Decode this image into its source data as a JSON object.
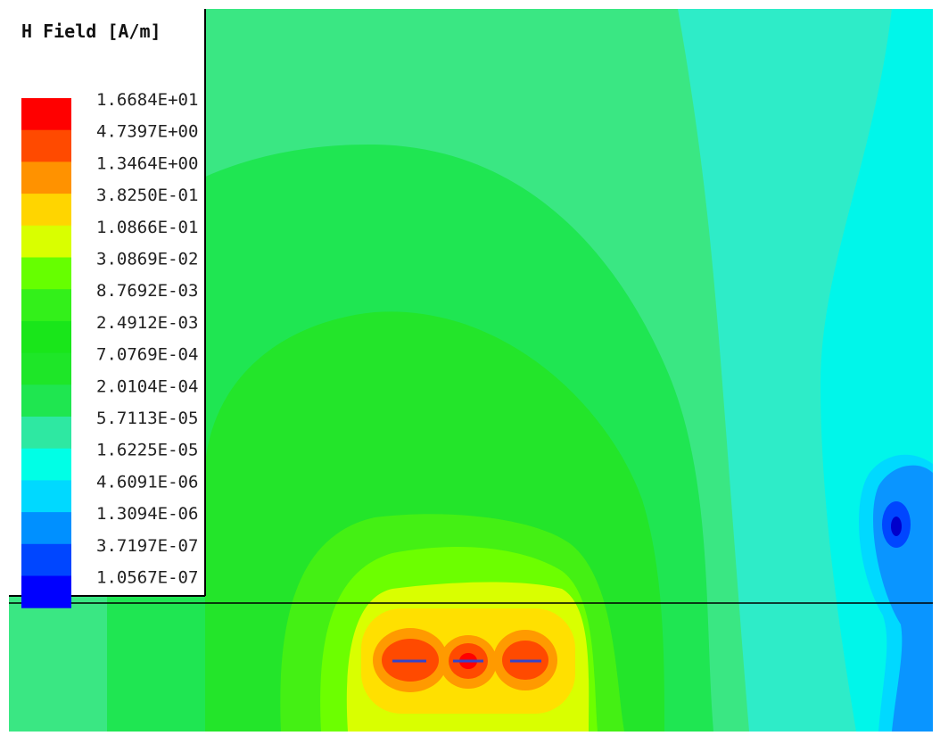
{
  "legend": {
    "title": "H Field [A/m]",
    "entries": [
      {
        "label": "1.6684E+01",
        "color": "#ff0000"
      },
      {
        "label": "4.7397E+00",
        "color": "#ff4a00"
      },
      {
        "label": "1.3464E+00",
        "color": "#ff9200"
      },
      {
        "label": "3.8250E-01",
        "color": "#ffd500"
      },
      {
        "label": "1.0866E-01",
        "color": "#d9ff00"
      },
      {
        "label": "3.0869E-02",
        "color": "#66ff00"
      },
      {
        "label": "8.7692E-03",
        "color": "#33f01a"
      },
      {
        "label": "2.4912E-03",
        "color": "#19e61a"
      },
      {
        "label": "7.0769E-04",
        "color": "#1ee628"
      },
      {
        "label": "2.0104E-04",
        "color": "#1fe650"
      },
      {
        "label": "5.7113E-05",
        "color": "#2ee8a2"
      },
      {
        "label": "1.6225E-05",
        "color": "#00ffe6"
      },
      {
        "label": "4.6091E-06",
        "color": "#00d9ff"
      },
      {
        "label": "1.3094E-06",
        "color": "#0090ff"
      },
      {
        "label": "3.7197E-07",
        "color": "#0046ff"
      },
      {
        "label": "1.0567E-07",
        "color": "#0000ff"
      }
    ]
  },
  "field_colors": {
    "outer_green": "#39e87b",
    "light_green": "#1fe650",
    "mid_green": "#22e628",
    "bright_green": "#33f01a",
    "lime": "#66ff00",
    "yellow_green": "#d9ff00",
    "yellow": "#ffd500",
    "orange": "#ff9200",
    "red_orange": "#ff4a00",
    "red": "#ff0000",
    "cyan_band": "#2ee8c2",
    "cyan": "#00ffe6",
    "sky": "#00d9ff",
    "blue": "#0090ff",
    "deep_blue": "#0046ff",
    "darkest": "#0000cc",
    "border_line": "#000000"
  }
}
